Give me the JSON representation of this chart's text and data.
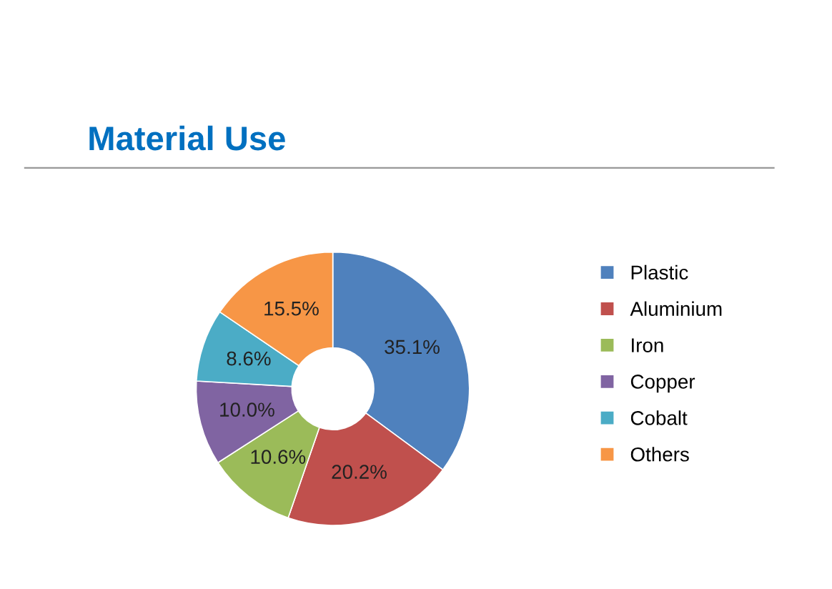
{
  "chart_data": {
    "type": "donut",
    "title": "Material Use",
    "categories": [
      "Plastic",
      "Aluminium",
      "Iron",
      "Copper",
      "Cobalt",
      "Others"
    ],
    "values": [
      35.1,
      20.2,
      10.6,
      10.0,
      8.6,
      15.5
    ],
    "colors": [
      "#4f81bd",
      "#c0504d",
      "#9bbb59",
      "#8064a2",
      "#4bacc6",
      "#f79646"
    ],
    "value_labels": [
      "35.1%",
      "20.2%",
      "10.6%",
      "10.0%",
      "8.6%",
      "15.5%"
    ],
    "legend": "right"
  }
}
